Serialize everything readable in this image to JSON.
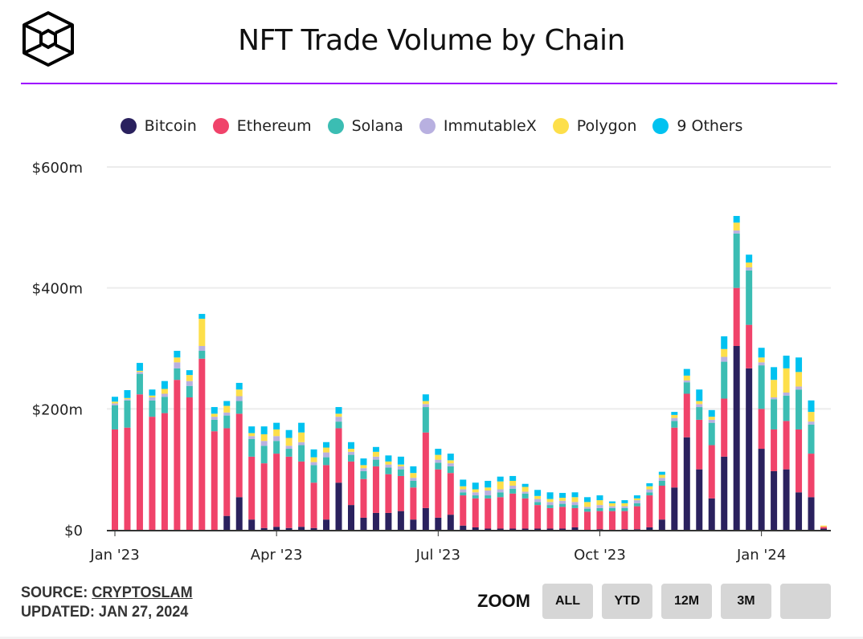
{
  "title": "NFT Trade Volume by Chain",
  "footer": {
    "source_label": "SOURCE:",
    "source_link": "CRYPTOSLAM",
    "updated": "UPDATED: JAN 27, 2024"
  },
  "zoom": {
    "label": "ZOOM",
    "buttons": [
      "ALL",
      "YTD",
      "12M",
      "3M",
      ""
    ]
  },
  "chart_data": {
    "type": "bar",
    "stacked": true,
    "title": "NFT Trade Volume by Chain",
    "xlabel": "",
    "ylabel": "",
    "ylim": [
      0,
      600
    ],
    "yticks": [
      {
        "value": 0,
        "label": "$0"
      },
      {
        "value": 200,
        "label": "$200m"
      },
      {
        "value": 400,
        "label": "$400m"
      },
      {
        "value": 600,
        "label": "$600m"
      }
    ],
    "xticks": [
      {
        "index": 0,
        "label": "Jan '23"
      },
      {
        "index": 13,
        "label": "Apr '23"
      },
      {
        "index": 26,
        "label": "Jul '23"
      },
      {
        "index": 39,
        "label": "Oct '23"
      },
      {
        "index": 52,
        "label": "Jan '24"
      }
    ],
    "grid": true,
    "legend_position": "top-center",
    "unit": "USD millions, weekly",
    "series": [
      {
        "name": "Bitcoin",
        "color": "#2a215e",
        "values": [
          0,
          0,
          0,
          0,
          0,
          0,
          0,
          0,
          0,
          23,
          54,
          17,
          3,
          5,
          3,
          5,
          3,
          17,
          78,
          41,
          20,
          28,
          28,
          31,
          17,
          36,
          20,
          25,
          7,
          4,
          2,
          2,
          2,
          2,
          2,
          2,
          2,
          4,
          0,
          1,
          0,
          1,
          1,
          4,
          17,
          70,
          153,
          100,
          52,
          121,
          304,
          267,
          134,
          97,
          100,
          62,
          54,
          2
        ]
      },
      {
        "name": "Ethereum",
        "color": "#f0436a",
        "values": [
          166,
          169,
          224,
          187,
          193,
          248,
          219,
          283,
          163,
          145,
          138,
          104,
          107,
          121,
          118,
          108,
          75,
          90,
          90,
          72,
          64,
          77,
          64,
          58,
          53,
          125,
          80,
          69,
          50,
          48,
          50,
          52,
          58,
          50,
          39,
          34,
          36,
          32,
          30,
          30,
          31,
          30,
          38,
          53,
          56,
          99,
          72,
          82,
          88,
          96,
          96,
          72,
          66,
          69,
          80,
          104,
          72,
          3
        ]
      },
      {
        "name": "Solana",
        "color": "#3bbdb3",
        "values": [
          40,
          45,
          34,
          27,
          27,
          19,
          19,
          13,
          19,
          21,
          21,
          29,
          29,
          21,
          13,
          27,
          29,
          13,
          11,
          11,
          13,
          11,
          11,
          11,
          11,
          42,
          11,
          11,
          5,
          5,
          5,
          8,
          8,
          8,
          5,
          5,
          5,
          5,
          5,
          5,
          5,
          5,
          5,
          5,
          8,
          11,
          19,
          21,
          37,
          61,
          90,
          90,
          72,
          50,
          42,
          66,
          48,
          0
        ]
      },
      {
        "name": "ImmutableX",
        "color": "#b8b0e0",
        "values": [
          3,
          2,
          3,
          5,
          5,
          10,
          8,
          8,
          5,
          5,
          8,
          5,
          8,
          8,
          5,
          5,
          5,
          8,
          8,
          5,
          5,
          5,
          5,
          5,
          5,
          5,
          5,
          5,
          5,
          5,
          8,
          5,
          5,
          3,
          5,
          5,
          5,
          5,
          3,
          5,
          3,
          3,
          5,
          5,
          5,
          5,
          3,
          5,
          5,
          8,
          5,
          5,
          5,
          3,
          5,
          5,
          5,
          0
        ]
      },
      {
        "name": "Polygon",
        "color": "#fddf4a",
        "values": [
          3,
          2,
          2,
          3,
          8,
          8,
          10,
          45,
          5,
          11,
          11,
          5,
          11,
          11,
          13,
          16,
          8,
          8,
          5,
          5,
          5,
          8,
          5,
          3,
          8,
          5,
          8,
          5,
          5,
          5,
          5,
          13,
          8,
          8,
          5,
          5,
          5,
          8,
          8,
          8,
          5,
          5,
          3,
          5,
          5,
          5,
          8,
          5,
          5,
          13,
          13,
          8,
          8,
          29,
          40,
          24,
          16,
          2
        ]
      },
      {
        "name": "9 Others",
        "color": "#00c2f0",
        "values": [
          8,
          13,
          13,
          10,
          13,
          11,
          8,
          8,
          11,
          8,
          11,
          11,
          13,
          11,
          13,
          16,
          13,
          9,
          11,
          11,
          11,
          8,
          10,
          13,
          11,
          11,
          10,
          11,
          11,
          11,
          11,
          8,
          8,
          5,
          10,
          11,
          8,
          8,
          8,
          8,
          3,
          5,
          5,
          5,
          5,
          5,
          11,
          19,
          11,
          21,
          11,
          13,
          16,
          21,
          21,
          24,
          19,
          0
        ]
      }
    ]
  }
}
